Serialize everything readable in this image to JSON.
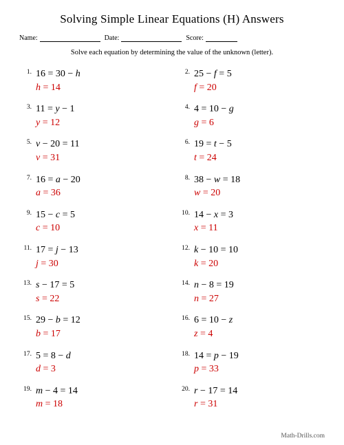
{
  "title": "Solving Simple Linear Equations (H) Answers",
  "header": {
    "name_label": "Name:",
    "date_label": "Date:",
    "score_label": "Score:",
    "name_blank_width": 88,
    "date_blank_width": 88,
    "score_blank_width": 46
  },
  "instructions": "Solve each equation by determining the value of the unknown (letter).",
  "colors": {
    "answer": "#cc0000",
    "text": "#000000",
    "background": "#ffffff"
  },
  "problems": [
    {
      "n": "1.",
      "eq_pre": "16 = 30 − ",
      "eq_var": "h",
      "eq_post": "",
      "ans_var": "h",
      "ans_val": " = 14"
    },
    {
      "n": "2.",
      "eq_pre": "25 − ",
      "eq_var": "f",
      "eq_post": " = 5",
      "ans_var": "f",
      "ans_val": " = 20"
    },
    {
      "n": "3.",
      "eq_pre": "11 = ",
      "eq_var": "y",
      "eq_post": " − 1",
      "ans_var": "y",
      "ans_val": " = 12"
    },
    {
      "n": "4.",
      "eq_pre": "4 = 10 − ",
      "eq_var": "g",
      "eq_post": "",
      "ans_var": "g",
      "ans_val": " = 6"
    },
    {
      "n": "5.",
      "eq_pre": "",
      "eq_var": "v",
      "eq_post": " − 20 = 11",
      "ans_var": "v",
      "ans_val": " = 31"
    },
    {
      "n": "6.",
      "eq_pre": "19 = ",
      "eq_var": "t",
      "eq_post": " − 5",
      "ans_var": "t",
      "ans_val": " = 24"
    },
    {
      "n": "7.",
      "eq_pre": "16 = ",
      "eq_var": "a",
      "eq_post": " − 20",
      "ans_var": "a",
      "ans_val": " = 36"
    },
    {
      "n": "8.",
      "eq_pre": "38 − ",
      "eq_var": "w",
      "eq_post": " = 18",
      "ans_var": "w",
      "ans_val": " = 20"
    },
    {
      "n": "9.",
      "eq_pre": "15 − ",
      "eq_var": "c",
      "eq_post": " = 5",
      "ans_var": "c",
      "ans_val": " = 10"
    },
    {
      "n": "10.",
      "eq_pre": "14 − ",
      "eq_var": "x",
      "eq_post": " = 3",
      "ans_var": "x",
      "ans_val": " = 11"
    },
    {
      "n": "11.",
      "eq_pre": "17 = ",
      "eq_var": "j",
      "eq_post": " − 13",
      "ans_var": "j",
      "ans_val": " = 30"
    },
    {
      "n": "12.",
      "eq_pre": "",
      "eq_var": "k",
      "eq_post": " − 10 = 10",
      "ans_var": "k",
      "ans_val": " = 20"
    },
    {
      "n": "13.",
      "eq_pre": "",
      "eq_var": "s",
      "eq_post": " − 17 = 5",
      "ans_var": "s",
      "ans_val": " = 22"
    },
    {
      "n": "14.",
      "eq_pre": "",
      "eq_var": "n",
      "eq_post": " − 8 = 19",
      "ans_var": "n",
      "ans_val": " = 27"
    },
    {
      "n": "15.",
      "eq_pre": "29 − ",
      "eq_var": "b",
      "eq_post": " = 12",
      "ans_var": "b",
      "ans_val": " = 17"
    },
    {
      "n": "16.",
      "eq_pre": "6 = 10 − ",
      "eq_var": "z",
      "eq_post": "",
      "ans_var": "z",
      "ans_val": " = 4"
    },
    {
      "n": "17.",
      "eq_pre": "5 = 8 − ",
      "eq_var": "d",
      "eq_post": "",
      "ans_var": "d",
      "ans_val": " = 3"
    },
    {
      "n": "18.",
      "eq_pre": "14 = ",
      "eq_var": "p",
      "eq_post": " − 19",
      "ans_var": "p",
      "ans_val": " = 33"
    },
    {
      "n": "19.",
      "eq_pre": "",
      "eq_var": "m",
      "eq_post": " − 4 = 14",
      "ans_var": "m",
      "ans_val": " = 18"
    },
    {
      "n": "20.",
      "eq_pre": "",
      "eq_var": "r",
      "eq_post": " − 17 = 14",
      "ans_var": "r",
      "ans_val": " = 31"
    }
  ],
  "footer": "Math-Drills.com"
}
